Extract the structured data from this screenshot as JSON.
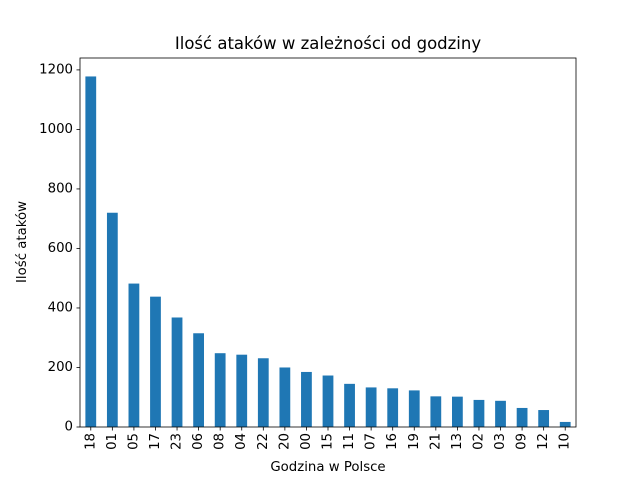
{
  "chart_data": {
    "type": "bar",
    "title": "Ilość ataków w zależności od godziny",
    "xlabel": "Godzina w Polsce",
    "ylabel": "Ilość ataków",
    "categories": [
      "18",
      "01",
      "05",
      "17",
      "23",
      "06",
      "08",
      "04",
      "22",
      "20",
      "00",
      "15",
      "11",
      "07",
      "16",
      "19",
      "21",
      "13",
      "02",
      "03",
      "09",
      "12",
      "10"
    ],
    "values": [
      1178,
      720,
      482,
      438,
      368,
      315,
      248,
      243,
      231,
      200,
      185,
      173,
      145,
      133,
      130,
      123,
      103,
      102,
      91,
      88,
      64,
      57,
      17
    ],
    "ylim": [
      0,
      1240
    ],
    "yticks": [
      0,
      200,
      400,
      600,
      800,
      1000,
      1200
    ],
    "grid": false,
    "bar_color": "#1f77b4"
  }
}
